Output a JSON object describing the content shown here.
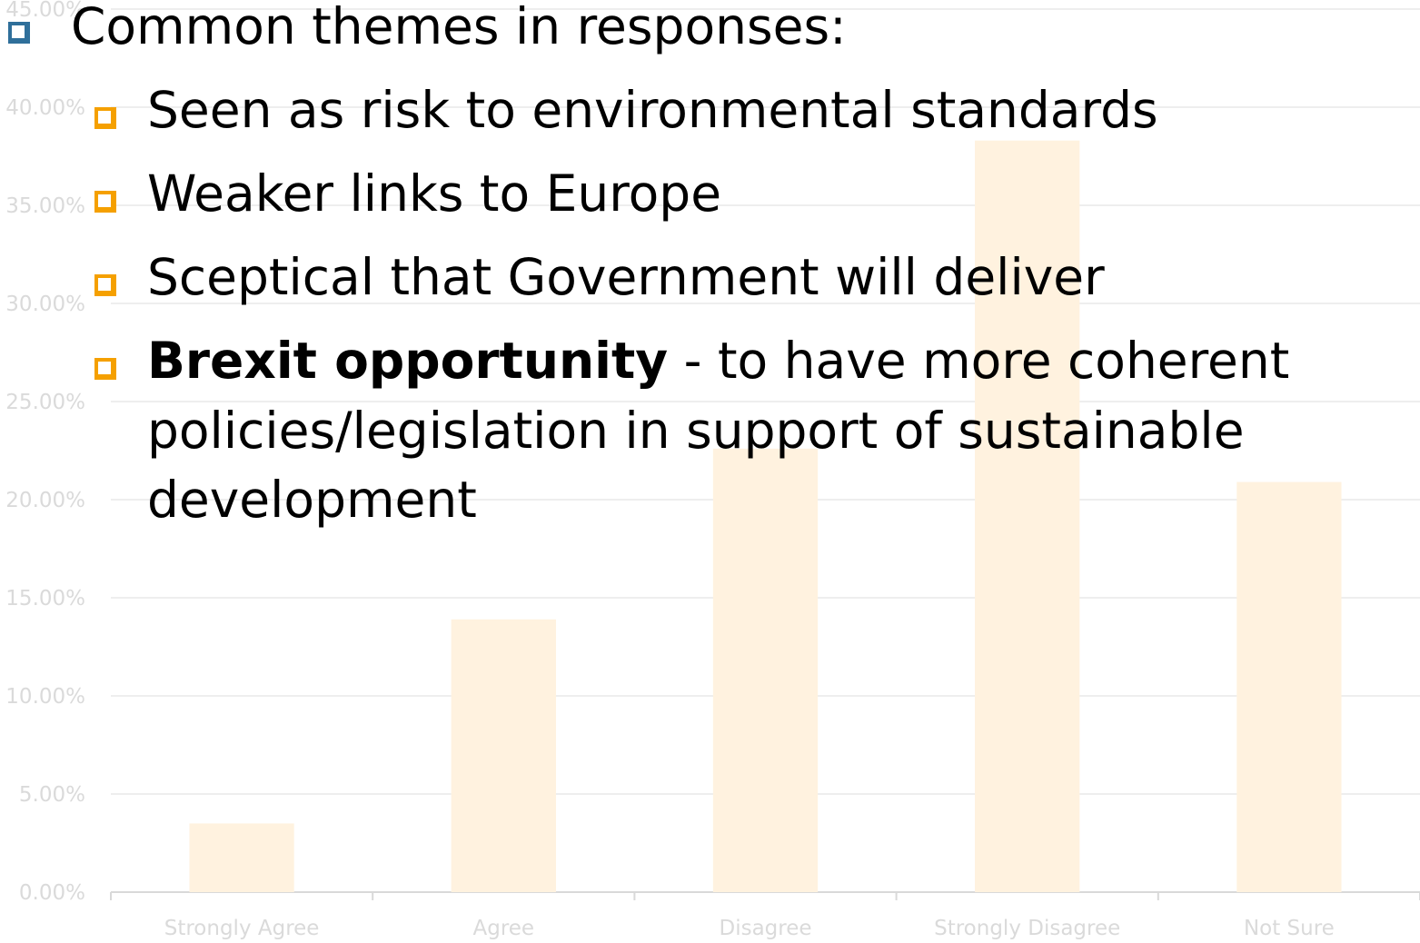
{
  "chart_data": {
    "type": "bar",
    "categories": [
      "Strongly Agree",
      "Agree",
      "Disagree",
      "Strongly Disagree",
      "Not Sure"
    ],
    "values": [
      3.5,
      13.9,
      22.6,
      38.3,
      20.9
    ],
    "y_ticks": [
      "0.00%",
      "5.00%",
      "10.00%",
      "15.00%",
      "20.00%",
      "25.00%",
      "30.00%",
      "35.00%",
      "40.00%",
      "45.00%"
    ],
    "ylim": [
      0,
      45
    ],
    "grid": true,
    "legend": "none",
    "bar_color": "#fff2df",
    "grid_color": "#eeeeee",
    "label_color": "#dadada",
    "title": "",
    "xlabel": "",
    "ylabel": ""
  },
  "overlay": {
    "heading": "Common themes in responses:",
    "bullets": [
      {
        "text": "Seen as risk to environmental standards"
      },
      {
        "text": "Weaker links to Europe"
      },
      {
        "text": "Sceptical that Government will deliver"
      },
      {
        "bold": "Brexit opportunity",
        "rest_line1": " - to have more coherent",
        "rest_line2": "policies/legislation in support of sustainable",
        "rest_line3": "development"
      }
    ],
    "main_marker_color": "#2f6f9a",
    "sub_marker_color": "#f5a000"
  }
}
